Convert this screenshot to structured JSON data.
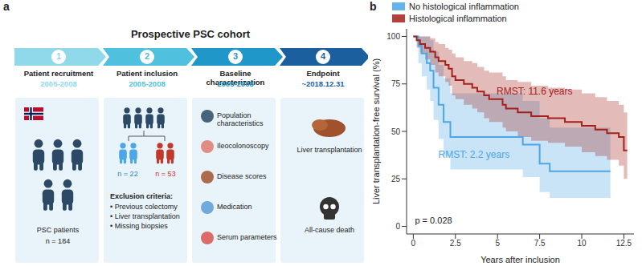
{
  "panel_labels": [
    "a",
    "b"
  ],
  "panel_a": {
    "title": "Prospective PSC cohort",
    "steps": [
      {
        "number": 1,
        "title": "Patient recruitment",
        "date": "2005-2008"
      },
      {
        "number": 2,
        "title": "Patient inclusion",
        "date": "2005-2008"
      },
      {
        "number": 3,
        "title": "Baseline characterization",
        "date": "2005-2008"
      },
      {
        "number": 4,
        "title": "Endpoint",
        "date": "~2018.12.31"
      }
    ],
    "recruitment": {
      "caption": "PSC patients",
      "n": "n = 184"
    },
    "inclusion": {
      "groups": [
        "n = 22",
        "n = 53"
      ],
      "exclusion_title": "Exclusion criteria:",
      "exclusion_items": [
        "• Previous colectomy",
        "• Liver transplantation",
        "• Missing biopsies"
      ]
    },
    "baseline": {
      "items": [
        "Population characteristics",
        "Ileocolonoscopy",
        "Disease scores",
        "Medication",
        "Serum parameters"
      ]
    },
    "endpoint": {
      "items": [
        "Liver transplantation",
        "All-cause death"
      ]
    }
  },
  "chart_data": {
    "type": "line",
    "line_style": "step",
    "x_label": "Years after inclusion",
    "y_label": "Liver transplantation-free survival (%)",
    "xlim": [
      -0.4,
      13.1
    ],
    "xticks": [
      0,
      2.5,
      5,
      7.5,
      10,
      12.5
    ],
    "ylim": [
      -4,
      104
    ],
    "yticks": [
      0,
      25,
      50,
      75,
      100
    ],
    "grid": false,
    "legend": "top",
    "annotations": [
      "p = 0.028"
    ],
    "series": [
      {
        "name": "No histological inflammation",
        "color": "#4da6e6",
        "label": "RMST: 2.2 years",
        "x": [
          0,
          0.3,
          0.5,
          0.8,
          1.0,
          1.2,
          1.5,
          1.8,
          2.2,
          6.5,
          7.5,
          8.1,
          11.7
        ],
        "values": [
          100,
          95,
          91,
          86,
          82,
          73,
          64,
          55,
          47,
          43,
          33,
          29,
          29
        ],
        "lower": [
          100,
          86,
          79,
          72,
          66,
          56,
          46,
          37,
          30,
          26,
          18,
          15,
          15
        ],
        "upper": [
          100,
          100,
          100,
          100,
          98,
          92,
          85,
          78,
          70,
          66,
          57,
          52,
          52
        ]
      },
      {
        "name": "Histological inflammation",
        "color": "#a3201b",
        "label": "RMST: 11.6 years",
        "x": [
          0,
          0.2,
          0.4,
          0.7,
          1.0,
          1.3,
          1.5,
          1.9,
          2.1,
          2.3,
          2.5,
          3.0,
          3.5,
          3.8,
          4.2,
          4.5,
          5.3,
          5.5,
          6.2,
          7.0,
          8.0,
          9.0,
          10.0,
          10.8,
          11.5,
          12.2,
          12.5,
          12.7
        ],
        "values": [
          100,
          98,
          96,
          94,
          92,
          89,
          87,
          85,
          83,
          79,
          77,
          75,
          73,
          71,
          69,
          67,
          64,
          62,
          60,
          58,
          57,
          55,
          53,
          51,
          49,
          47,
          40,
          40
        ],
        "lower": [
          100,
          94,
          91,
          88,
          85,
          81,
          79,
          76,
          74,
          69,
          67,
          64,
          62,
          60,
          57,
          55,
          52,
          50,
          47,
          45,
          44,
          42,
          39,
          37,
          35,
          32,
          25,
          25
        ],
        "upper": [
          100,
          100,
          100,
          100,
          99,
          97,
          96,
          94,
          93,
          91,
          89,
          87,
          86,
          84,
          82,
          81,
          79,
          77,
          76,
          74,
          73,
          72,
          70,
          68,
          66,
          64,
          60,
          60
        ]
      }
    ]
  }
}
